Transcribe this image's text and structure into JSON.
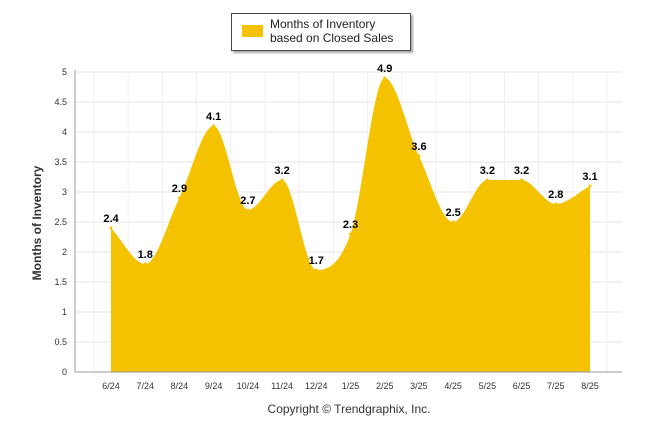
{
  "legend": {
    "series_label": "Months of Inventory based on Closed Sales"
  },
  "footer": {
    "copyright": "Copyright © Trendgraphix, Inc."
  },
  "colors": {
    "area_fill": "#F5C200",
    "grid": "#e6e6e6",
    "axis": "#999999",
    "text": "#333333"
  },
  "chart_data": {
    "type": "area",
    "title": "",
    "xlabel": "",
    "ylabel": "Months of Inventory",
    "ylim": [
      0,
      5
    ],
    "yticks": [
      "0",
      "0.5",
      "1",
      "1.5",
      "2",
      "2.5",
      "3",
      "3.5",
      "4",
      "4.5",
      "5"
    ],
    "categories": [
      "6/24",
      "7/24",
      "8/24",
      "9/24",
      "10/24",
      "11/24",
      "12/24",
      "1/25",
      "2/25",
      "3/25",
      "4/25",
      "5/25",
      "6/25",
      "7/25",
      "8/25"
    ],
    "series": [
      {
        "name": "Months of Inventory based on Closed Sales",
        "values": [
          2.4,
          1.8,
          2.9,
          4.1,
          2.7,
          3.2,
          1.7,
          2.3,
          4.9,
          3.6,
          2.5,
          3.2,
          3.2,
          2.8,
          3.1
        ],
        "labels": [
          "2.4",
          "1.8",
          "2.9",
          "4.1",
          "2.7",
          "3.2",
          "1.7",
          "2.3",
          "4.9",
          "3.6",
          "2.5",
          "3.2",
          "3.2",
          "2.8",
          "3.1"
        ]
      }
    ],
    "grid": true,
    "legend_position": "top-center"
  }
}
